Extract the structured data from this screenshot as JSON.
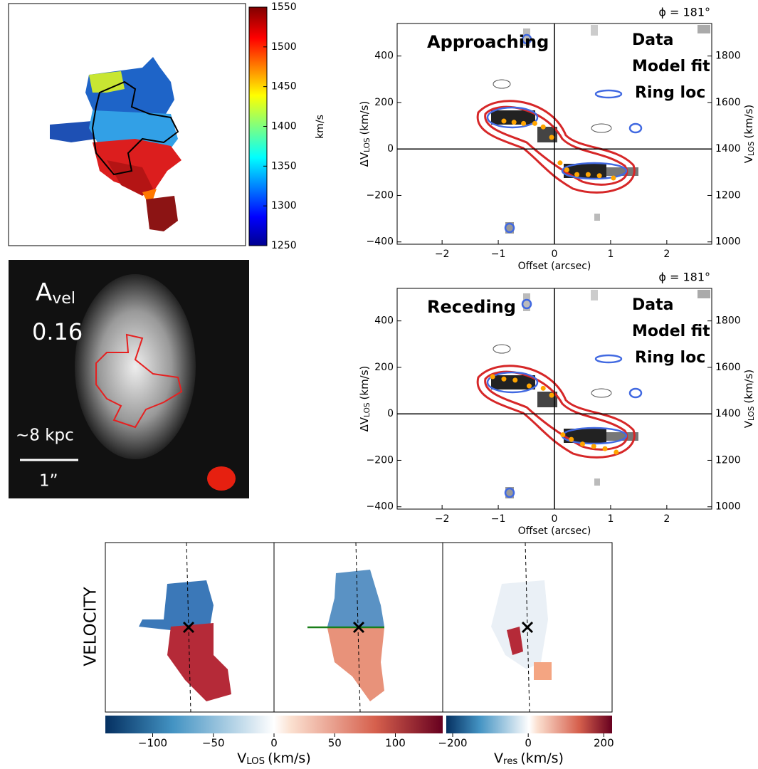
{
  "chart_data": [
    {
      "type": "velocity-map",
      "colorbar": {
        "label": "km/s",
        "lim": [
          1250,
          1550
        ],
        "ticks": [
          1250,
          1300,
          1350,
          1400,
          1450,
          1500,
          1550
        ]
      }
    },
    {
      "type": "pv",
      "title": "Approaching",
      "phi": "ϕ = 181°",
      "labels": [
        {
          "name": "Data",
          "color": "#1f77b4"
        },
        {
          "name": "Model fit",
          "color": "#d62728"
        }
      ],
      "xlabel": "Offset (arcsec)",
      "ylabel": {
        "main": "ΔV",
        "sub": "LOS",
        "unit": "(km/s)"
      },
      "y2label": {
        "main": "V",
        "sub": "LOS",
        "unit": "(km/s)"
      },
      "xlim": [
        -2.8,
        2.8
      ],
      "ylim": [
        -410,
        540
      ],
      "y2lim": [
        990,
        1940
      ],
      "xticks": [
        {
          "value": -2,
          "label": "−2"
        },
        {
          "value": -1,
          "label": "−1"
        },
        0,
        1,
        2
      ],
      "yticks": [
        {
          "value": -400,
          "label": "−400"
        },
        {
          "value": -200,
          "label": "−200"
        },
        0,
        200,
        400
      ],
      "y2ticks": [
        1000,
        1200,
        1400,
        1600,
        1800
      ],
      "series": [
        {
          "name": "Ring loc",
          "color": "#ffa500",
          "x": [
            -0.9,
            -0.72,
            -0.55,
            -0.35,
            -0.2,
            -0.05,
            0.1,
            0.22,
            0.4,
            0.6,
            0.8,
            1.05
          ],
          "values": [
            120,
            115,
            110,
            110,
            95,
            50,
            -60,
            -90,
            -110,
            -110,
            -115,
            -125
          ]
        }
      ]
    },
    {
      "type": "pv",
      "title": "Receding",
      "phi": "ϕ = 181°",
      "labels": [
        {
          "name": "Data",
          "color": "#1f77b4"
        },
        {
          "name": "Model fit",
          "color": "#d62728"
        }
      ],
      "xlabel": "Offset (arcsec)",
      "ylabel": {
        "main": "ΔV",
        "sub": "LOS",
        "unit": "(km/s)"
      },
      "y2label": {
        "main": "V",
        "sub": "LOS",
        "unit": "(km/s)"
      },
      "xlim": [
        -2.8,
        2.8
      ],
      "ylim": [
        -410,
        540
      ],
      "y2lim": [
        990,
        1940
      ],
      "xticks": [
        {
          "value": -2,
          "label": "−2"
        },
        {
          "value": -1,
          "label": "−1"
        },
        0,
        1,
        2
      ],
      "yticks": [
        {
          "value": -400,
          "label": "−400"
        },
        {
          "value": -200,
          "label": "−200"
        },
        0,
        200,
        400
      ],
      "y2ticks": [
        1000,
        1200,
        1400,
        1600,
        1800
      ],
      "series": [
        {
          "name": "Ring loc",
          "color": "#ffa500",
          "x": [
            -1.1,
            -0.9,
            -0.7,
            -0.45,
            -0.2,
            -0.05,
            0.15,
            0.3,
            0.5,
            0.7,
            0.9,
            1.1
          ],
          "values": [
            160,
            150,
            145,
            120,
            110,
            80,
            -90,
            -110,
            -130,
            -140,
            -150,
            -165
          ]
        }
      ]
    },
    {
      "type": "asymmetry-image",
      "label": {
        "main": "A",
        "sub": "vel"
      },
      "value": 0.16,
      "scale": "~8 kpc",
      "beam": "1”"
    },
    {
      "type": "velocity-panels",
      "ylabel": "VELOCITY",
      "colorbars": [
        {
          "label": {
            "main": "V",
            "sub": "LOS",
            "unit": "(km/s)"
          },
          "lim": [
            -139,
            139
          ],
          "ticks": [
            {
              "value": -100,
              "label": "−100"
            },
            {
              "value": -50,
              "label": "−50"
            },
            0,
            50,
            100
          ]
        },
        {
          "label": {
            "main": "V",
            "sub": "res",
            "unit": "(km/s)"
          },
          "lim": [
            -217,
            222
          ],
          "ticks": [
            {
              "value": -200,
              "label": "−200"
            },
            0,
            200
          ]
        }
      ]
    }
  ]
}
